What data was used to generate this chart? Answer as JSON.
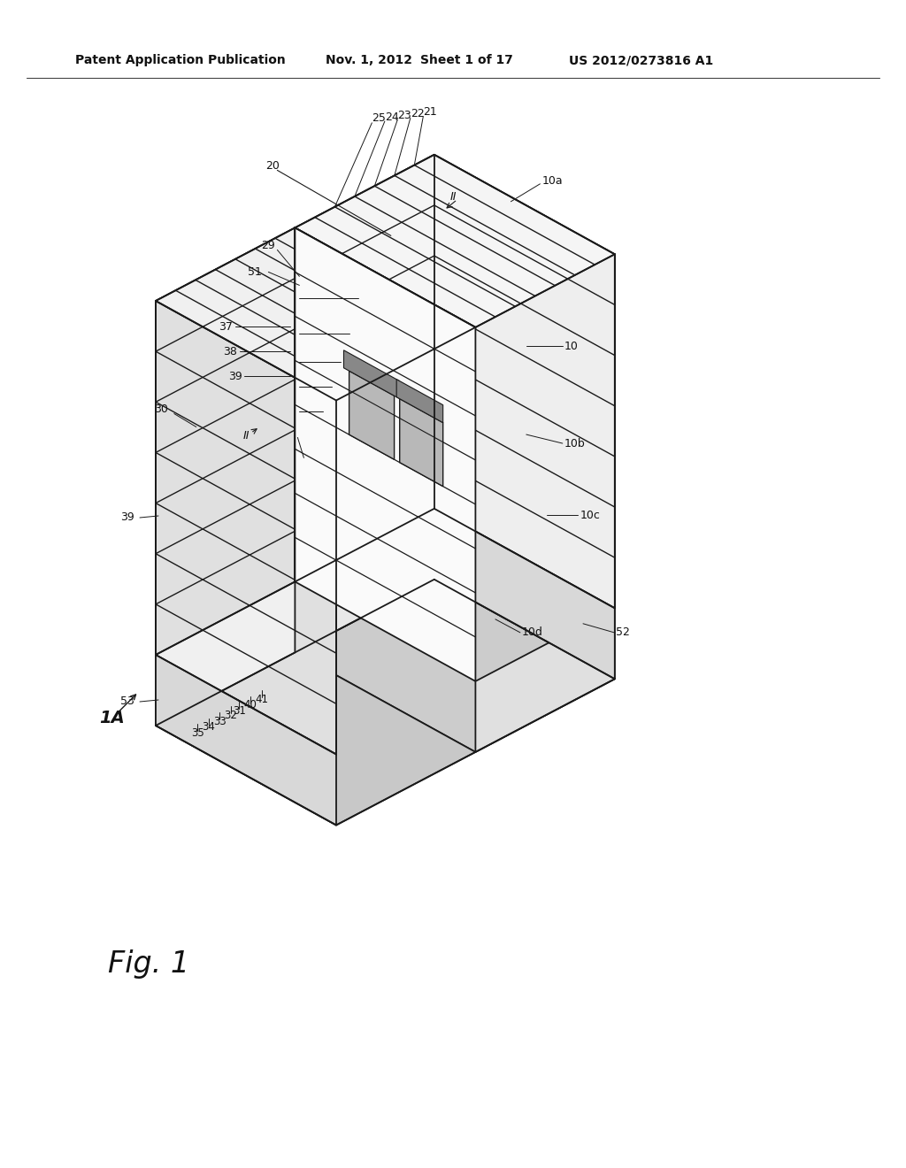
{
  "bg_color": "#ffffff",
  "header_text": "Patent Application Publication",
  "header_date": "Nov. 1, 2012",
  "header_sheet": "Sheet 1 of 17",
  "header_patent": "US 2012/0273816 A1",
  "figure_label": "Fig. 1",
  "line_color": "#1a1a1a",
  "face_white": "#ffffff",
  "face_light": "#f2f2f2",
  "face_mid": "#e0e0e0",
  "face_dark": "#c8c8c8"
}
